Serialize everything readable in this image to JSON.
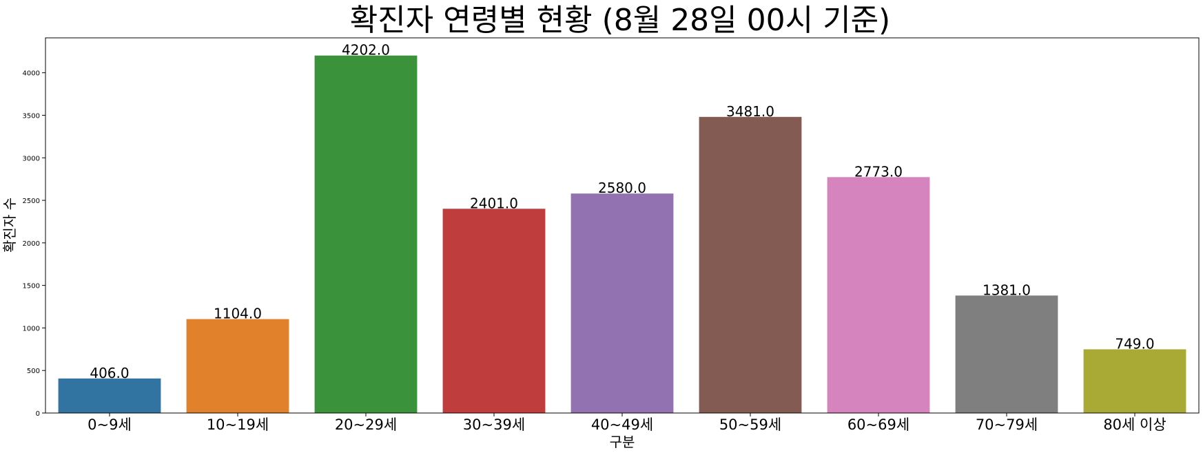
{
  "chart_data": {
    "type": "bar",
    "title": "확진자 연령별 현황 (8월 28일 00시 기준)",
    "xlabel": "구분",
    "ylabel": "확진자 수",
    "categories": [
      "0~9세",
      "10~19세",
      "20~29세",
      "30~39세",
      "40~49세",
      "50~59세",
      "60~69세",
      "70~79세",
      "80세 이상"
    ],
    "values": [
      406.0,
      1104.0,
      4202.0,
      2401.0,
      2580.0,
      3481.0,
      2773.0,
      1381.0,
      749.0
    ],
    "value_labels": [
      "406.0",
      "1104.0",
      "4202.0",
      "2401.0",
      "2580.0",
      "3481.0",
      "2773.0",
      "1381.0",
      "749.0"
    ],
    "colors": [
      "#3274a1",
      "#e1812c",
      "#3a923a",
      "#c03d3e",
      "#9372b2",
      "#845b53",
      "#d684bd",
      "#7f7f7f",
      "#a9aa35"
    ],
    "ylim": [
      0,
      4410
    ],
    "yticks": [
      0,
      500,
      1000,
      1500,
      2000,
      2500,
      3000,
      3500,
      4000
    ],
    "grid": false,
    "legend": "none"
  }
}
